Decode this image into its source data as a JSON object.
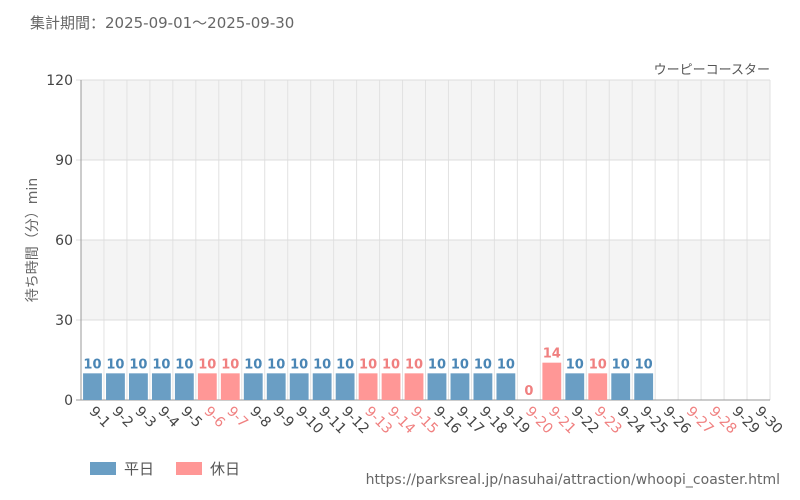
{
  "header": {
    "period": "集計期間：2025-09-01～2025-09-30"
  },
  "footer": {
    "source_url": "https://parksreal.jp/nasuhai/attraction/whoopi_coaster.html"
  },
  "colors": {
    "weekday": "#6a9ec4",
    "holiday": "#ff9796",
    "holiday_label": "#f08080",
    "weekday_label": "#4a86b5"
  },
  "chart_data": {
    "type": "bar",
    "title": "ウーピーコースター",
    "ylabel": "待ち時間（分）min",
    "ylim": [
      0,
      120
    ],
    "yticks": [
      0,
      30,
      60,
      90,
      120
    ],
    "grid": true,
    "legend_position": "bottom-left",
    "legend": [
      {
        "name": "平日",
        "key": "weekday"
      },
      {
        "name": "休日",
        "key": "holiday"
      }
    ],
    "categories": [
      "9-1",
      "9-2",
      "9-3",
      "9-4",
      "9-5",
      "9-6",
      "9-7",
      "9-8",
      "9-9",
      "9-10",
      "9-11",
      "9-12",
      "9-13",
      "9-14",
      "9-15",
      "9-16",
      "9-17",
      "9-18",
      "9-19",
      "9-20",
      "9-21",
      "9-22",
      "9-23",
      "9-24",
      "9-25",
      "9-26",
      "9-27",
      "9-28",
      "9-29",
      "9-30"
    ],
    "values": [
      10,
      10,
      10,
      10,
      10,
      10,
      10,
      10,
      10,
      10,
      10,
      10,
      10,
      10,
      10,
      10,
      10,
      10,
      10,
      0,
      14,
      10,
      10,
      10,
      10,
      null,
      null,
      null,
      null,
      null
    ],
    "day_type": [
      "weekday",
      "weekday",
      "weekday",
      "weekday",
      "weekday",
      "holiday",
      "holiday",
      "weekday",
      "weekday",
      "weekday",
      "weekday",
      "weekday",
      "holiday",
      "holiday",
      "holiday",
      "weekday",
      "weekday",
      "weekday",
      "weekday",
      "holiday",
      "holiday",
      "weekday",
      "holiday",
      "weekday",
      "weekday",
      "weekday",
      "holiday",
      "holiday",
      "weekday",
      "weekday"
    ]
  }
}
